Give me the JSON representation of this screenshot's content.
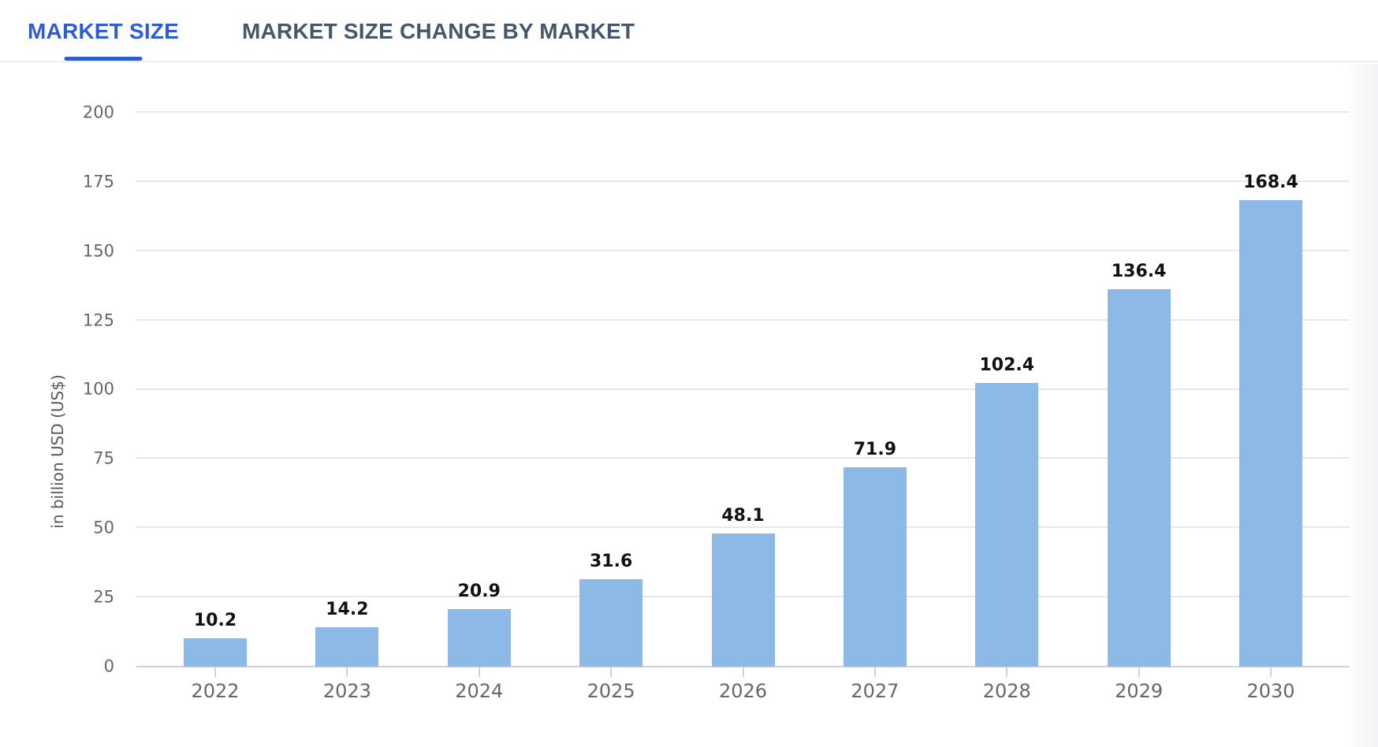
{
  "tabs": [
    {
      "label": "MARKET SIZE",
      "active": true
    },
    {
      "label": "MARKET SIZE CHANGE BY MARKET",
      "active": false
    }
  ],
  "chart_data": {
    "type": "bar",
    "categories": [
      "2022",
      "2023",
      "2024",
      "2025",
      "2026",
      "2027",
      "2028",
      "2029",
      "2030"
    ],
    "values": [
      10.2,
      14.2,
      20.9,
      31.6,
      48.1,
      71.9,
      102.4,
      136.4,
      168.4
    ],
    "title": "",
    "xlabel": "",
    "ylabel": "in billion USD (US$)",
    "ylim": [
      0,
      200
    ],
    "yticks": [
      0,
      25,
      50,
      75,
      100,
      125,
      150,
      175,
      200
    ],
    "grid": true,
    "legend": "none",
    "value_labels_shown": true
  },
  "colors": {
    "accent": "#2c5cd9",
    "tab_inactive": "#46566b",
    "bar": "#8db9e6",
    "gridline": "#e8e8e8",
    "axis": "#c9d2ea",
    "y_tick_label": "#666666",
    "x_tick_label": "#64686e",
    "value_label": "#111111"
  }
}
